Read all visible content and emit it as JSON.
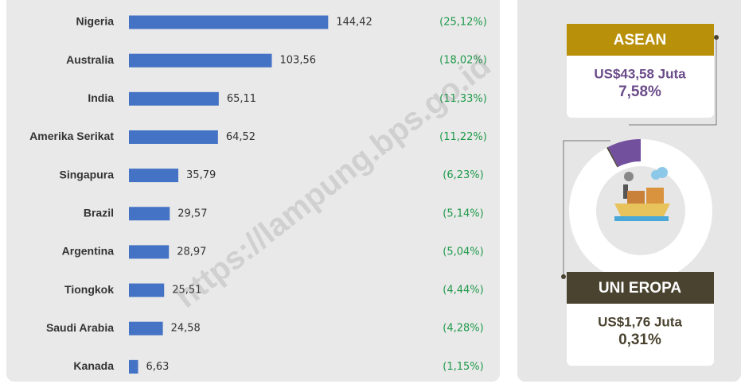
{
  "chart_data": [
    {
      "type": "bar",
      "orientation": "horizontal",
      "categories": [
        "Nigeria",
        "Australia",
        "India",
        "Amerika Serikat",
        "Singapura",
        "Brazil",
        "Argentina",
        "Tiongkok",
        "Saudi Arabia",
        "Kanada"
      ],
      "values": [
        144.42,
        103.56,
        65.11,
        64.52,
        35.79,
        29.57,
        28.97,
        25.51,
        24.58,
        6.63
      ],
      "value_labels": [
        "144,42",
        "103,56",
        "65,11",
        "64,52",
        "35,79",
        "29,57",
        "28,97",
        "25,51",
        "24,58",
        "6,63"
      ],
      "share_labels": [
        "(25,12%)",
        "(18,02%)",
        "(11,33%)",
        "(11,22%)",
        "(6,23%)",
        "(5,14%)",
        "(5,04%)",
        "(4,44%)",
        "(4,28%)",
        "(1,15%)"
      ],
      "color": "#4472c4",
      "xlim": [
        0,
        150
      ]
    },
    {
      "type": "pie",
      "categories": [
        "ASEAN",
        "UNI EROPA"
      ],
      "values": [
        7.58,
        0.31
      ],
      "value_labels": [
        "7,58%",
        "0,31%"
      ],
      "amount_labels": [
        "US$43,58 Juta",
        "US$1,76 Juta"
      ],
      "colors": [
        "#73509e",
        "#4a4330"
      ],
      "header_colors": [
        "#b8900a",
        "#4a4330"
      ]
    }
  ],
  "watermark": "https://lampung.bps.go.id"
}
